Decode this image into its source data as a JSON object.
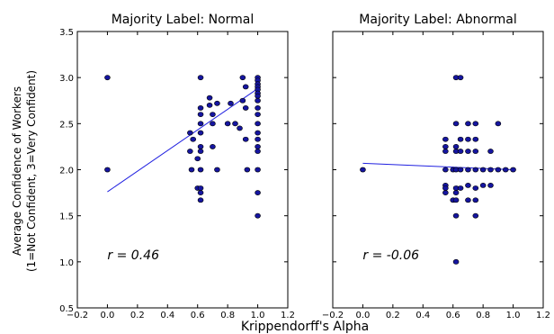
{
  "chart_data": [
    {
      "type": "scatter",
      "title": "Majority Label: Normal",
      "annotation": "r = 0.46",
      "xlim": [
        -0.2,
        1.2
      ],
      "ylim": [
        0.5,
        3.5
      ],
      "xticks": [
        "−0.2",
        "0.0",
        "0.2",
        "0.4",
        "0.6",
        "0.8",
        "1.0",
        "1.2"
      ],
      "yticks": [
        "0.5",
        "1.0",
        "1.5",
        "2.0",
        "2.5",
        "3.0",
        "3.5"
      ],
      "fit_line": {
        "x": [
          0.0,
          1.0
        ],
        "y": [
          1.76,
          2.88
        ]
      },
      "points": [
        [
          0.0,
          3.0
        ],
        [
          0.0,
          2.0
        ],
        [
          0.55,
          2.4
        ],
        [
          0.55,
          2.2
        ],
        [
          0.56,
          2.0
        ],
        [
          0.57,
          2.33
        ],
        [
          0.6,
          2.12
        ],
        [
          0.6,
          1.8
        ],
        [
          0.62,
          3.0
        ],
        [
          0.62,
          2.67
        ],
        [
          0.62,
          2.6
        ],
        [
          0.62,
          2.5
        ],
        [
          0.62,
          2.4
        ],
        [
          0.62,
          2.25
        ],
        [
          0.62,
          2.2
        ],
        [
          0.62,
          2.0
        ],
        [
          0.62,
          1.8
        ],
        [
          0.62,
          1.75
        ],
        [
          0.62,
          1.67
        ],
        [
          0.68,
          2.78
        ],
        [
          0.68,
          2.7
        ],
        [
          0.7,
          2.6
        ],
        [
          0.7,
          2.5
        ],
        [
          0.7,
          2.25
        ],
        [
          0.73,
          2.72
        ],
        [
          0.73,
          2.0
        ],
        [
          0.8,
          2.5
        ],
        [
          0.82,
          2.72
        ],
        [
          0.85,
          2.5
        ],
        [
          0.88,
          2.45
        ],
        [
          0.9,
          2.75
        ],
        [
          0.9,
          3.0
        ],
        [
          0.92,
          2.9
        ],
        [
          0.92,
          2.67
        ],
        [
          0.92,
          2.33
        ],
        [
          0.93,
          2.0
        ],
        [
          1.0,
          3.0
        ],
        [
          1.0,
          2.97
        ],
        [
          1.0,
          2.93
        ],
        [
          1.0,
          2.9
        ],
        [
          1.0,
          2.87
        ],
        [
          1.0,
          2.83
        ],
        [
          1.0,
          2.8
        ],
        [
          1.0,
          2.75
        ],
        [
          1.0,
          2.67
        ],
        [
          1.0,
          2.6
        ],
        [
          1.0,
          2.5
        ],
        [
          1.0,
          2.4
        ],
        [
          1.0,
          2.33
        ],
        [
          1.0,
          2.25
        ],
        [
          1.0,
          2.2
        ],
        [
          1.0,
          2.0
        ],
        [
          1.0,
          1.75
        ],
        [
          1.0,
          1.5
        ]
      ]
    },
    {
      "type": "scatter",
      "title": "Majority Label: Abnormal",
      "annotation": "r = -0.06",
      "xlim": [
        -0.2,
        1.2
      ],
      "ylim": [
        0.5,
        3.5
      ],
      "xticks": [
        "−0.2",
        "0.0",
        "0.2",
        "0.4",
        "0.6",
        "0.8",
        "1.0",
        "1.2"
      ],
      "yticks": [],
      "fit_line": {
        "x": [
          0.0,
          1.0
        ],
        "y": [
          2.07,
          2.0
        ]
      },
      "points": [
        [
          0.0,
          2.0
        ],
        [
          0.55,
          2.33
        ],
        [
          0.55,
          2.25
        ],
        [
          0.55,
          2.2
        ],
        [
          0.55,
          2.0
        ],
        [
          0.55,
          1.83
        ],
        [
          0.55,
          1.8
        ],
        [
          0.55,
          1.75
        ],
        [
          0.6,
          2.0
        ],
        [
          0.6,
          1.67
        ],
        [
          0.62,
          3.0
        ],
        [
          0.62,
          2.5
        ],
        [
          0.62,
          2.25
        ],
        [
          0.62,
          2.2
        ],
        [
          0.62,
          2.0
        ],
        [
          0.62,
          1.8
        ],
        [
          0.62,
          1.75
        ],
        [
          0.62,
          1.67
        ],
        [
          0.62,
          1.5
        ],
        [
          0.62,
          1.0
        ],
        [
          0.65,
          3.0
        ],
        [
          0.65,
          2.33
        ],
        [
          0.65,
          2.2
        ],
        [
          0.65,
          2.0
        ],
        [
          0.65,
          1.8
        ],
        [
          0.7,
          2.5
        ],
        [
          0.7,
          2.33
        ],
        [
          0.7,
          2.2
        ],
        [
          0.7,
          2.0
        ],
        [
          0.7,
          1.83
        ],
        [
          0.7,
          1.67
        ],
        [
          0.75,
          2.5
        ],
        [
          0.75,
          2.33
        ],
        [
          0.75,
          2.2
        ],
        [
          0.75,
          2.0
        ],
        [
          0.75,
          1.8
        ],
        [
          0.75,
          1.67
        ],
        [
          0.75,
          1.5
        ],
        [
          0.8,
          2.0
        ],
        [
          0.8,
          1.83
        ],
        [
          0.85,
          2.2
        ],
        [
          0.85,
          2.0
        ],
        [
          0.85,
          1.83
        ],
        [
          0.9,
          2.5
        ],
        [
          0.9,
          2.0
        ],
        [
          0.95,
          2.0
        ],
        [
          1.0,
          2.0
        ]
      ]
    }
  ],
  "shared": {
    "ylabel_line1": "Average Confidence of Workers",
    "ylabel_line2": "(1=Not Confident, 3=Very Confident)",
    "xlabel": "Krippendorff's Alpha"
  }
}
